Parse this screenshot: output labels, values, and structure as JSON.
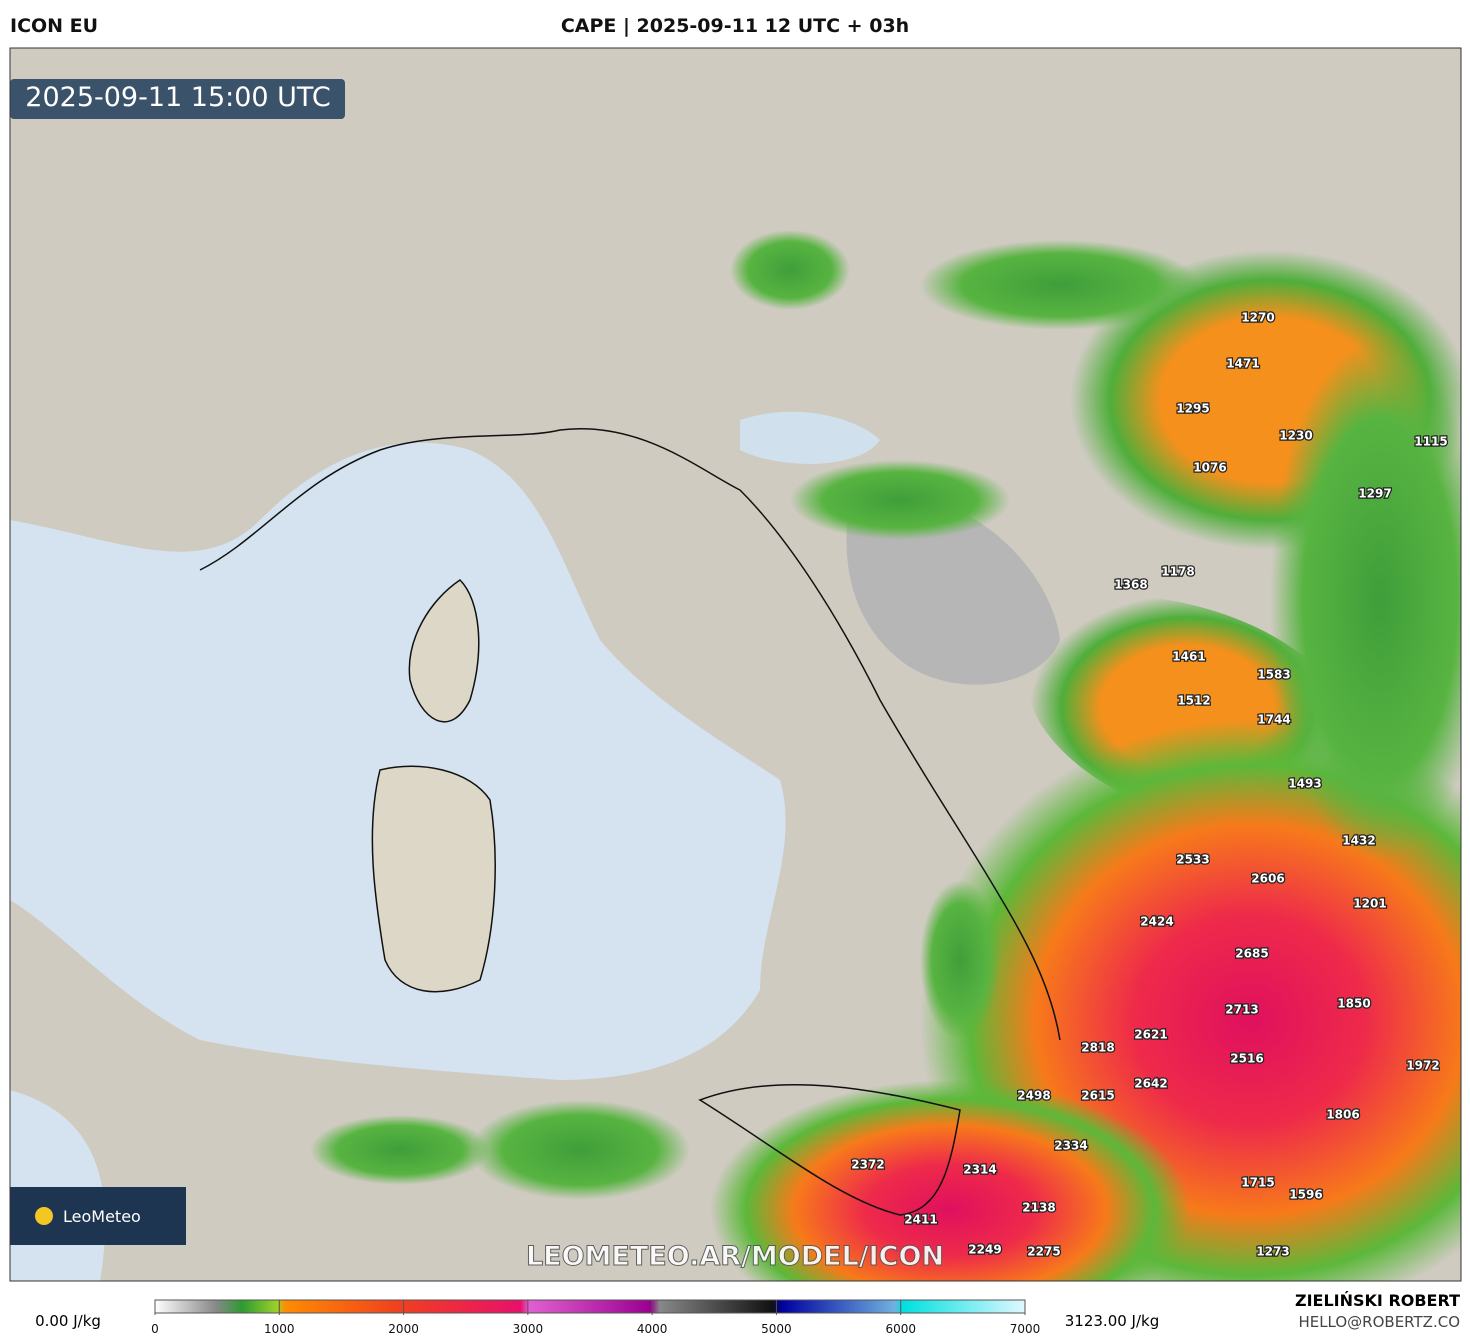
{
  "header": {
    "model": "ICON EU",
    "title": "CAPE | 2025-09-11 12 UTC + 03h"
  },
  "map": {
    "timestamp": "2025-09-11 15:00 UTC",
    "watermark": "LEOMETEO.AR/MODEL/ICON",
    "logo": "LeoMeteo",
    "labels": [
      1270,
      1471,
      1295,
      1230,
      1115,
      1076,
      1297,
      1178,
      1368,
      1461,
      1583,
      1512,
      1744,
      1493,
      1432,
      2533,
      2606,
      1201,
      2424,
      2685,
      1850,
      2713,
      2621,
      2818,
      2516,
      1972,
      2642,
      2498,
      2615,
      1806,
      2334,
      2372,
      2314,
      1715,
      1596,
      2138,
      2411,
      2249,
      2275,
      1273
    ]
  },
  "colorbar": {
    "min_label": "0.00 J/kg",
    "max_label": "3123.00 J/kg",
    "ticks": [
      0,
      1000,
      2000,
      3000,
      4000,
      5000,
      6000,
      7000
    ]
  },
  "footer": {
    "author": "ZIELIŃSKI ROBERT",
    "contact": "HELLO@ROBERTZ.CO"
  }
}
